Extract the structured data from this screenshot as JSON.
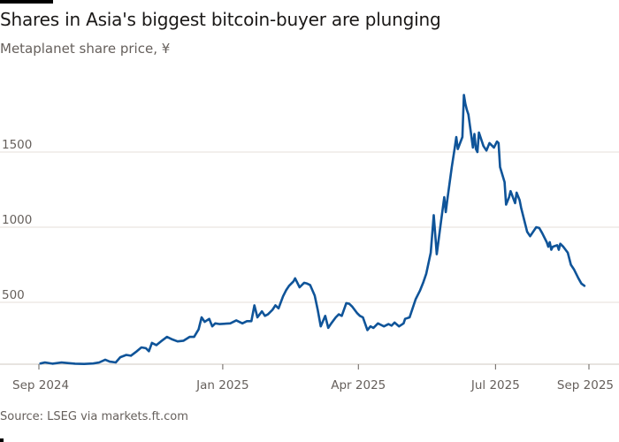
{
  "chart_data": {
    "type": "line",
    "title": "Shares in Asia's biggest bitcoin-buyer are plunging",
    "subtitle": "Metaplanet share price, ¥",
    "source": "Source: LSEG via markets.ft.com",
    "xlabel": "",
    "ylabel": "",
    "x_range": [
      "2024-09-01",
      "2025-09-01"
    ],
    "ylim": [
      0,
      1900
    ],
    "y_ticks": [
      500,
      1000,
      1500
    ],
    "x_ticks": [
      {
        "date": "2024-09-01",
        "label": "Sep 2024"
      },
      {
        "date": "2025-01-01",
        "label": "Jan 2025"
      },
      {
        "date": "2025-04-01",
        "label": "Apr 2025"
      },
      {
        "date": "2025-07-01",
        "label": "Jul 2025"
      },
      {
        "date": "2025-09-01",
        "label": "Sep 2025"
      }
    ],
    "grid": true,
    "color": "#0f5499",
    "series": [
      {
        "name": "Metaplanet share price",
        "points": [
          [
            "2024-09-02",
            93
          ],
          [
            "2024-09-05",
            100
          ],
          [
            "2024-09-10",
            92
          ],
          [
            "2024-09-16",
            100
          ],
          [
            "2024-09-20",
            96
          ],
          [
            "2024-09-25",
            92
          ],
          [
            "2024-10-01",
            90
          ],
          [
            "2024-10-07",
            93
          ],
          [
            "2024-10-11",
            100
          ],
          [
            "2024-10-15",
            118
          ],
          [
            "2024-10-18",
            105
          ],
          [
            "2024-10-22",
            100
          ],
          [
            "2024-10-25",
            135
          ],
          [
            "2024-10-29",
            150
          ],
          [
            "2024-11-01",
            145
          ],
          [
            "2024-11-05",
            175
          ],
          [
            "2024-11-08",
            200
          ],
          [
            "2024-11-11",
            195
          ],
          [
            "2024-11-13",
            175
          ],
          [
            "2024-11-15",
            230
          ],
          [
            "2024-11-18",
            215
          ],
          [
            "2024-11-21",
            240
          ],
          [
            "2024-11-25",
            270
          ],
          [
            "2024-11-28",
            255
          ],
          [
            "2024-12-02",
            240
          ],
          [
            "2024-12-06",
            245
          ],
          [
            "2024-12-10",
            270
          ],
          [
            "2024-12-13",
            270
          ],
          [
            "2024-12-16",
            320
          ],
          [
            "2024-12-18",
            400
          ],
          [
            "2024-12-20",
            370
          ],
          [
            "2024-12-23",
            390
          ],
          [
            "2024-12-25",
            340
          ],
          [
            "2024-12-27",
            360
          ],
          [
            "2024-12-30",
            355
          ],
          [
            "2025-01-06",
            360
          ],
          [
            "2025-01-10",
            380
          ],
          [
            "2025-01-14",
            360
          ],
          [
            "2025-01-17",
            375
          ],
          [
            "2025-01-20",
            375
          ],
          [
            "2025-01-22",
            480
          ],
          [
            "2025-01-24",
            400
          ],
          [
            "2025-01-27",
            440
          ],
          [
            "2025-01-29",
            410
          ],
          [
            "2025-01-31",
            420
          ],
          [
            "2025-02-03",
            450
          ],
          [
            "2025-02-05",
            480
          ],
          [
            "2025-02-07",
            460
          ],
          [
            "2025-02-10",
            540
          ],
          [
            "2025-02-12",
            580
          ],
          [
            "2025-02-14",
            610
          ],
          [
            "2025-02-17",
            640
          ],
          [
            "2025-02-18",
            660
          ],
          [
            "2025-02-19",
            640
          ],
          [
            "2025-02-21",
            600
          ],
          [
            "2025-02-24",
            630
          ],
          [
            "2025-02-26",
            625
          ],
          [
            "2025-02-28",
            615
          ],
          [
            "2025-03-03",
            545
          ],
          [
            "2025-03-05",
            450
          ],
          [
            "2025-03-07",
            340
          ],
          [
            "2025-03-10",
            410
          ],
          [
            "2025-03-12",
            330
          ],
          [
            "2025-03-14",
            360
          ],
          [
            "2025-03-17",
            400
          ],
          [
            "2025-03-19",
            420
          ],
          [
            "2025-03-21",
            410
          ],
          [
            "2025-03-24",
            495
          ],
          [
            "2025-03-26",
            490
          ],
          [
            "2025-03-28",
            470
          ],
          [
            "2025-03-31",
            430
          ],
          [
            "2025-04-02",
            410
          ],
          [
            "2025-04-04",
            400
          ],
          [
            "2025-04-07",
            315
          ],
          [
            "2025-04-09",
            340
          ],
          [
            "2025-04-11",
            330
          ],
          [
            "2025-04-14",
            360
          ],
          [
            "2025-04-16",
            350
          ],
          [
            "2025-04-18",
            340
          ],
          [
            "2025-04-21",
            355
          ],
          [
            "2025-04-23",
            345
          ],
          [
            "2025-04-25",
            365
          ],
          [
            "2025-04-28",
            340
          ],
          [
            "2025-05-01",
            360
          ],
          [
            "2025-05-02",
            390
          ],
          [
            "2025-05-05",
            400
          ],
          [
            "2025-05-07",
            460
          ],
          [
            "2025-05-09",
            520
          ],
          [
            "2025-05-12",
            580
          ],
          [
            "2025-05-14",
            630
          ],
          [
            "2025-05-16",
            690
          ],
          [
            "2025-05-19",
            830
          ],
          [
            "2025-05-21",
            1080
          ],
          [
            "2025-05-22",
            950
          ],
          [
            "2025-05-23",
            820
          ],
          [
            "2025-05-26",
            1050
          ],
          [
            "2025-05-28",
            1200
          ],
          [
            "2025-05-29",
            1100
          ],
          [
            "2025-05-30",
            1180
          ],
          [
            "2025-06-02",
            1400
          ],
          [
            "2025-06-04",
            1530
          ],
          [
            "2025-06-05",
            1600
          ],
          [
            "2025-06-06",
            1520
          ],
          [
            "2025-06-09",
            1600
          ],
          [
            "2025-06-10",
            1880
          ],
          [
            "2025-06-11",
            1820
          ],
          [
            "2025-06-12",
            1780
          ],
          [
            "2025-06-13",
            1750
          ],
          [
            "2025-06-16",
            1530
          ],
          [
            "2025-06-17",
            1620
          ],
          [
            "2025-06-18",
            1520
          ],
          [
            "2025-06-19",
            1500
          ],
          [
            "2025-06-20",
            1630
          ],
          [
            "2025-06-23",
            1540
          ],
          [
            "2025-06-25",
            1510
          ],
          [
            "2025-06-27",
            1560
          ],
          [
            "2025-06-30",
            1530
          ],
          [
            "2025-07-02",
            1570
          ],
          [
            "2025-07-03",
            1560
          ],
          [
            "2025-07-04",
            1400
          ],
          [
            "2025-07-07",
            1300
          ],
          [
            "2025-07-08",
            1150
          ],
          [
            "2025-07-10",
            1200
          ],
          [
            "2025-07-11",
            1240
          ],
          [
            "2025-07-14",
            1160
          ],
          [
            "2025-07-15",
            1230
          ],
          [
            "2025-07-17",
            1180
          ],
          [
            "2025-07-18",
            1130
          ],
          [
            "2025-07-22",
            970
          ],
          [
            "2025-07-24",
            940
          ],
          [
            "2025-07-28",
            1000
          ],
          [
            "2025-07-30",
            995
          ],
          [
            "2025-08-01",
            960
          ],
          [
            "2025-08-04",
            900
          ],
          [
            "2025-08-05",
            870
          ],
          [
            "2025-08-06",
            900
          ],
          [
            "2025-08-07",
            850
          ],
          [
            "2025-08-08",
            870
          ],
          [
            "2025-08-11",
            880
          ],
          [
            "2025-08-12",
            850
          ],
          [
            "2025-08-13",
            890
          ],
          [
            "2025-08-15",
            870
          ],
          [
            "2025-08-18",
            830
          ],
          [
            "2025-08-20",
            750
          ],
          [
            "2025-08-22",
            720
          ],
          [
            "2025-08-25",
            660
          ],
          [
            "2025-08-27",
            625
          ],
          [
            "2025-08-29",
            610
          ]
        ]
      }
    ]
  }
}
